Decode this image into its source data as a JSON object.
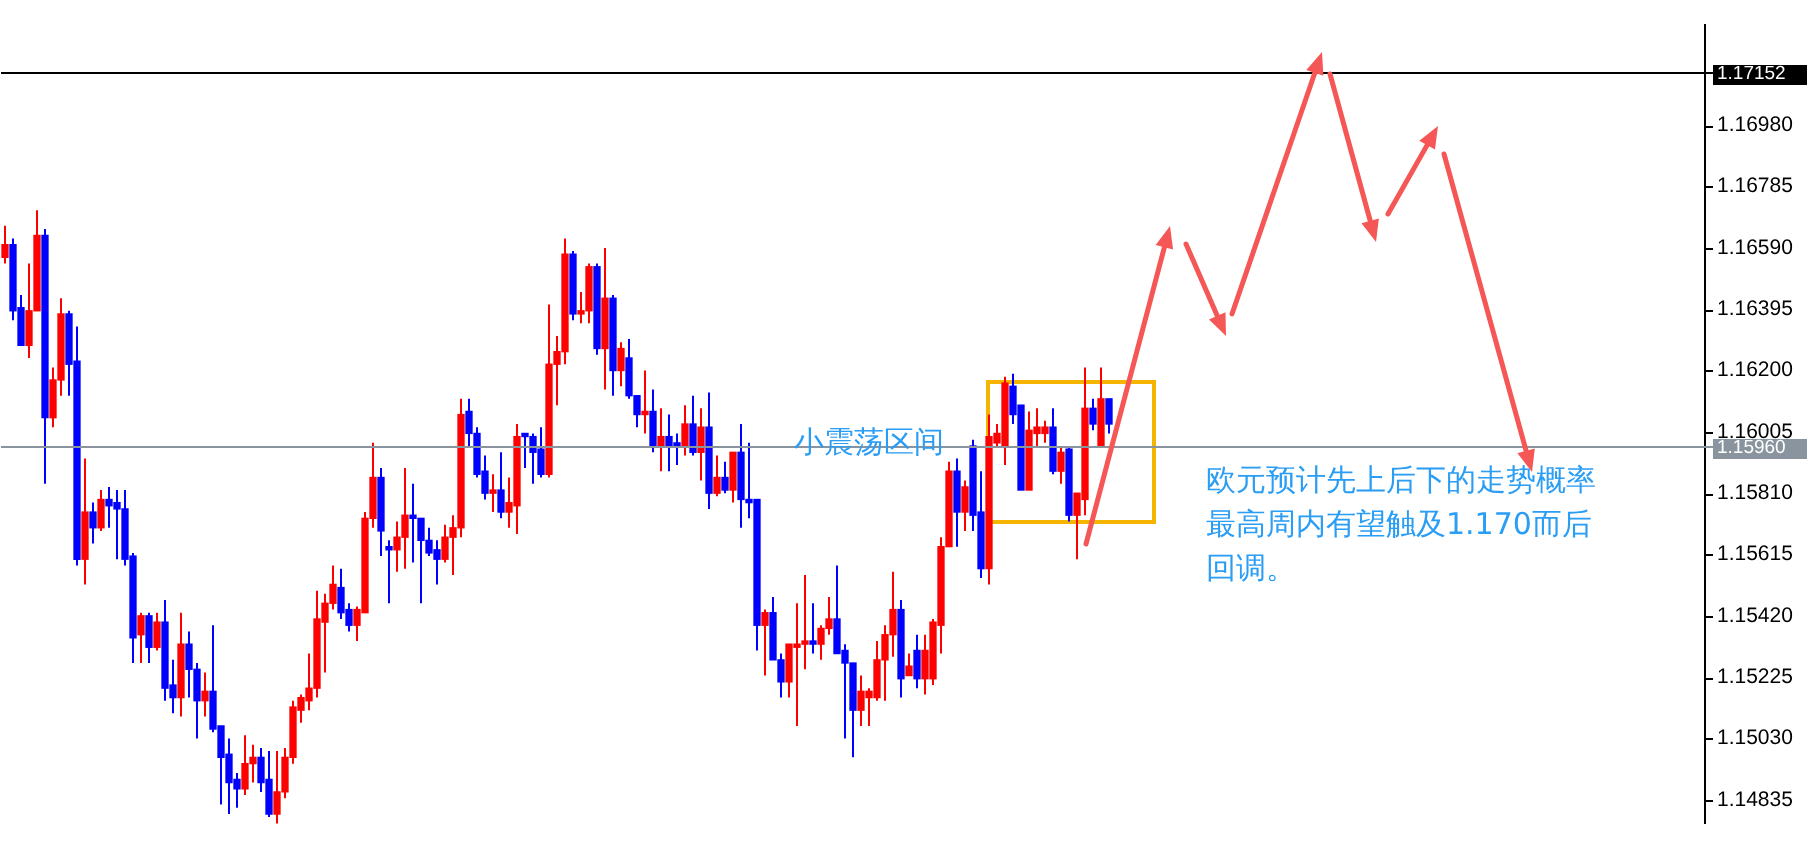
{
  "chart_data": {
    "type": "candlestick",
    "categories": [
      null,
      null,
      null,
      null,
      null,
      null,
      null,
      null,
      null,
      null,
      null,
      null,
      null,
      null,
      null,
      null,
      null,
      null,
      null,
      null,
      null,
      null,
      null,
      null,
      null,
      null,
      null,
      null,
      null,
      null,
      null,
      null,
      null,
      null,
      null,
      null,
      null,
      null,
      null,
      null,
      null,
      null,
      null,
      null,
      null,
      null,
      null,
      null,
      null,
      null,
      null,
      null,
      null,
      null,
      null,
      null,
      null,
      null,
      null,
      null,
      null,
      null,
      null,
      null,
      null,
      null,
      null,
      null,
      null,
      null,
      null,
      null,
      null,
      null,
      null,
      null,
      null,
      null,
      null,
      null,
      null,
      null,
      null,
      null,
      null,
      null,
      null,
      null,
      null,
      null,
      null,
      null,
      null,
      null,
      null,
      null,
      null,
      null,
      null,
      null,
      null,
      null,
      null,
      null,
      null,
      null,
      null,
      null,
      null,
      null,
      null,
      null,
      null,
      null,
      null,
      null,
      null,
      null,
      null,
      null,
      null,
      null,
      null,
      null,
      null,
      null,
      null,
      null,
      null,
      null,
      null,
      null,
      null,
      null,
      null,
      null,
      null,
      null,
      null,
      null,
      null,
      null,
      null,
      null,
      null,
      null,
      null,
      null,
      null,
      null,
      null,
      null,
      null,
      null,
      null,
      null,
      null,
      null,
      null,
      null,
      null,
      null,
      null,
      null,
      null,
      null,
      null,
      null,
      null,
      null,
      null,
      null,
      null,
      null,
      null,
      null,
      null,
      null,
      null,
      null,
      null,
      null,
      null,
      null,
      null,
      null,
      null,
      null,
      null,
      null,
      null,
      null,
      null,
      null,
      null,
      null,
      null,
      null,
      null,
      null,
      null,
      null,
      null,
      null,
      null,
      null,
      null,
      null,
      null,
      null,
      null,
      null,
      null
    ],
    "ohlc": [
      [
        1.1656,
        1.1666,
        1.1654,
        1.166
      ],
      [
        1.166,
        1.1662,
        1.1636,
        1.1639
      ],
      [
        1.164,
        1.1644,
        1.1628,
        1.1628
      ],
      [
        1.1628,
        1.1654,
        1.1624,
        1.1639
      ],
      [
        1.1639,
        1.1671,
        1.1639,
        1.1663
      ],
      [
        1.1663,
        1.1665,
        1.1584,
        1.1605
      ],
      [
        1.1605,
        1.1621,
        1.1602,
        1.1617
      ],
      [
        1.1617,
        1.1643,
        1.1612,
        1.1638
      ],
      [
        1.1638,
        1.1639,
        1.1612,
        1.1622
      ],
      [
        1.1623,
        1.1634,
        1.1558,
        1.156
      ],
      [
        1.156,
        1.1592,
        1.1552,
        1.1575
      ],
      [
        1.1575,
        1.1578,
        1.1565,
        1.157
      ],
      [
        1.157,
        1.1582,
        1.1569,
        1.1579
      ],
      [
        1.1579,
        1.1583,
        1.157,
        1.1577
      ],
      [
        1.1578,
        1.1582,
        1.156,
        1.1576
      ],
      [
        1.1576,
        1.1582,
        1.1558,
        1.156
      ],
      [
        1.1561,
        1.1562,
        1.1527,
        1.1535
      ],
      [
        1.1536,
        1.1543,
        1.1527,
        1.1542
      ],
      [
        1.1542,
        1.1543,
        1.1527,
        1.1532
      ],
      [
        1.1532,
        1.1543,
        1.1531,
        1.154
      ],
      [
        1.154,
        1.1547,
        1.1515,
        1.1519
      ],
      [
        1.152,
        1.1528,
        1.1511,
        1.1516
      ],
      [
        1.1516,
        1.1543,
        1.151,
        1.1533
      ],
      [
        1.1533,
        1.1537,
        1.1516,
        1.1525
      ],
      [
        1.1525,
        1.1527,
        1.1503,
        1.1515
      ],
      [
        1.1515,
        1.1524,
        1.151,
        1.1518
      ],
      [
        1.1518,
        1.1539,
        1.1505,
        1.1506
      ],
      [
        1.1507,
        1.1507,
        1.1482,
        1.1497
      ],
      [
        1.1498,
        1.1503,
        1.1479,
        1.1489
      ],
      [
        1.149,
        1.1492,
        1.1481,
        1.1487
      ],
      [
        1.1487,
        1.1504,
        1.1485,
        1.1495
      ],
      [
        1.1495,
        1.1501,
        1.1489,
        1.1497
      ],
      [
        1.1497,
        1.15,
        1.1486,
        1.1489
      ],
      [
        1.149,
        1.1499,
        1.1478,
        1.1479
      ],
      [
        1.1479,
        1.1499,
        1.1476,
        1.1486
      ],
      [
        1.1486,
        1.15,
        1.1484,
        1.1497
      ],
      [
        1.1497,
        1.1515,
        1.1495,
        1.1513
      ],
      [
        1.1512,
        1.1517,
        1.1508,
        1.1516
      ],
      [
        1.1515,
        1.153,
        1.1512,
        1.1519
      ],
      [
        1.1519,
        1.155,
        1.1516,
        1.1541
      ],
      [
        1.154,
        1.1549,
        1.1524,
        1.1546
      ],
      [
        1.1546,
        1.1558,
        1.1544,
        1.1552
      ],
      [
        1.1551,
        1.1557,
        1.1541,
        1.1543
      ],
      [
        1.1544,
        1.1546,
        1.1537,
        1.1539
      ],
      [
        1.1539,
        1.1545,
        1.1534,
        1.1544
      ],
      [
        1.1543,
        1.1575,
        1.1543,
        1.1573
      ],
      [
        1.1573,
        1.1597,
        1.157,
        1.1586
      ],
      [
        1.1586,
        1.1589,
        1.1561,
        1.1569
      ],
      [
        1.1564,
        1.1566,
        1.1546,
        1.1563
      ],
      [
        1.1563,
        1.1572,
        1.1556,
        1.1567
      ],
      [
        1.1567,
        1.1589,
        1.1557,
        1.1574
      ],
      [
        1.1574,
        1.1584,
        1.1559,
        1.1573
      ],
      [
        1.1573,
        1.1573,
        1.1546,
        1.1566
      ],
      [
        1.1566,
        1.157,
        1.1561,
        1.1562
      ],
      [
        1.1563,
        1.1566,
        1.1552,
        1.156
      ],
      [
        1.156,
        1.1571,
        1.1559,
        1.1567
      ],
      [
        1.1567,
        1.1574,
        1.1555,
        1.157
      ],
      [
        1.157,
        1.1611,
        1.1567,
        1.1606
      ],
      [
        1.1607,
        1.1611,
        1.1596,
        1.16
      ],
      [
        1.16,
        1.1602,
        1.1586,
        1.1587
      ],
      [
        1.1588,
        1.1593,
        1.1579,
        1.1581
      ],
      [
        1.1581,
        1.1587,
        1.1575,
        1.1582
      ],
      [
        1.1582,
        1.1594,
        1.1573,
        1.1575
      ],
      [
        1.1575,
        1.1586,
        1.157,
        1.1578
      ],
      [
        1.1577,
        1.1603,
        1.1568,
        1.1599
      ],
      [
        1.16,
        1.16,
        1.1589,
        1.1599
      ],
      [
        1.1599,
        1.16,
        1.1584,
        1.1594
      ],
      [
        1.1595,
        1.1602,
        1.1586,
        1.1587
      ],
      [
        1.1587,
        1.1641,
        1.1586,
        1.1622
      ],
      [
        1.1622,
        1.1631,
        1.1609,
        1.1626
      ],
      [
        1.1626,
        1.1662,
        1.1622,
        1.1657
      ],
      [
        1.1657,
        1.1658,
        1.1636,
        1.1638
      ],
      [
        1.1638,
        1.1645,
        1.1635,
        1.1639
      ],
      [
        1.1639,
        1.1654,
        1.1635,
        1.1653
      ],
      [
        1.1653,
        1.1654,
        1.1625,
        1.1627
      ],
      [
        1.1627,
        1.1659,
        1.1614,
        1.1643
      ],
      [
        1.1643,
        1.1644,
        1.1612,
        1.162
      ],
      [
        1.162,
        1.1629,
        1.1615,
        1.1627
      ],
      [
        1.1624,
        1.163,
        1.1611,
        1.1612
      ],
      [
        1.1612,
        1.1612,
        1.1602,
        1.1606
      ],
      [
        1.1606,
        1.162,
        1.16,
        1.1607
      ],
      [
        1.1607,
        1.1614,
        1.1594,
        1.1596
      ],
      [
        1.1596,
        1.1608,
        1.1588,
        1.1599
      ],
      [
        1.1599,
        1.1606,
        1.1588,
        1.1596
      ],
      [
        1.1597,
        1.16,
        1.159,
        1.1596
      ],
      [
        1.1596,
        1.1609,
        1.1593,
        1.1603
      ],
      [
        1.1603,
        1.1612,
        1.1593,
        1.1594
      ],
      [
        1.1594,
        1.1608,
        1.1585,
        1.1602
      ],
      [
        1.1602,
        1.1613,
        1.1576,
        1.1581
      ],
      [
        1.1581,
        1.1593,
        1.158,
        1.1586
      ],
      [
        1.1586,
        1.1591,
        1.1581,
        1.1582
      ],
      [
        1.1582,
        1.1594,
        1.1578,
        1.1594
      ],
      [
        1.1594,
        1.1603,
        1.157,
        1.1579
      ],
      [
        1.1579,
        1.1597,
        1.1573,
        1.1578
      ],
      [
        1.1579,
        1.1579,
        1.1531,
        1.1539
      ],
      [
        1.1539,
        1.1544,
        1.1523,
        1.1543
      ],
      [
        1.1543,
        1.1548,
        1.1528,
        1.1528
      ],
      [
        1.1528,
        1.153,
        1.1516,
        1.1521
      ],
      [
        1.1521,
        1.1533,
        1.1516,
        1.1533
      ],
      [
        1.1532,
        1.1546,
        1.1507,
        1.1533
      ],
      [
        1.1533,
        1.1555,
        1.1525,
        1.1534
      ],
      [
        1.1534,
        1.1546,
        1.153,
        1.1533
      ],
      [
        1.1533,
        1.1539,
        1.1528,
        1.1538
      ],
      [
        1.1538,
        1.1548,
        1.1536,
        1.1541
      ],
      [
        1.1541,
        1.1558,
        1.153,
        1.153
      ],
      [
        1.1531,
        1.1533,
        1.1503,
        1.1527
      ],
      [
        1.1527,
        1.1527,
        1.1497,
        1.1512
      ],
      [
        1.1512,
        1.1523,
        1.1507,
        1.1518
      ],
      [
        1.1516,
        1.1519,
        1.1507,
        1.1518
      ],
      [
        1.1516,
        1.1534,
        1.1515,
        1.1528
      ],
      [
        1.1528,
        1.1539,
        1.1515,
        1.1536
      ],
      [
        1.1536,
        1.1556,
        1.1529,
        1.1544
      ],
      [
        1.1544,
        1.1547,
        1.1516,
        1.1522
      ],
      [
        1.1523,
        1.153,
        1.1523,
        1.1526
      ],
      [
        1.1531,
        1.1536,
        1.1519,
        1.1522
      ],
      [
        1.1522,
        1.1536,
        1.1517,
        1.1531
      ],
      [
        1.1522,
        1.1541,
        1.152,
        1.154
      ],
      [
        1.1539,
        1.1567,
        1.153,
        1.1564
      ],
      [
        1.1564,
        1.1591,
        1.1564,
        1.1588
      ],
      [
        1.1588,
        1.1592,
        1.1564,
        1.1575
      ],
      [
        1.1575,
        1.1585,
        1.1569,
        1.1583
      ],
      [
        1.1596,
        1.1598,
        1.1569,
        1.1574
      ],
      [
        1.1575,
        1.1588,
        1.1554,
        1.1557
      ],
      [
        1.1557,
        1.1606,
        1.1552,
        1.1599
      ],
      [
        1.1597,
        1.1603,
        1.1596,
        1.16
      ],
      [
        1.1596,
        1.1618,
        1.159,
        1.1616
      ],
      [
        1.1615,
        1.1619,
        1.1603,
        1.1606
      ],
      [
        1.1609,
        1.1609,
        1.1582,
        1.1582
      ],
      [
        1.1582,
        1.1607,
        1.1582,
        1.1601
      ],
      [
        1.16,
        1.1608,
        1.1596,
        1.1602
      ],
      [
        1.16,
        1.1604,
        1.1597,
        1.1602
      ],
      [
        1.1602,
        1.1608,
        1.1587,
        1.1588
      ],
      [
        1.1588,
        1.1596,
        1.1584,
        1.1594
      ],
      [
        1.1595,
        1.1596,
        1.1572,
        1.1574
      ],
      [
        1.1574,
        1.1581,
        1.156,
        1.1581
      ],
      [
        1.1579,
        1.1621,
        1.1574,
        1.1608
      ],
      [
        1.1608,
        1.1611,
        1.1601,
        1.1603
      ],
      [
        1.1596,
        1.1621,
        1.1596,
        1.1611
      ],
      [
        1.1611,
        1.1611,
        1.16,
        1.1603
      ],
      null,
      null,
      null,
      null,
      null,
      null,
      null,
      null,
      null,
      null,
      null,
      null,
      null,
      null,
      null,
      null,
      null,
      null,
      null,
      null,
      null,
      null,
      null,
      null,
      null,
      null,
      null,
      null,
      null,
      null,
      null,
      null,
      null,
      null,
      null,
      null,
      null,
      null,
      null,
      null,
      null,
      null,
      null,
      null,
      null,
      null,
      null,
      null,
      null,
      null,
      null,
      null,
      null,
      null,
      null,
      null,
      null,
      null,
      null,
      null,
      null,
      null,
      null,
      null,
      null,
      null,
      null,
      null,
      null,
      null,
      null,
      null,
      null,
      null
    ],
    "colors": [
      "#ff0000",
      "#0000ff",
      "#0000ff",
      "#ff0000",
      "#ff0000",
      "#0000ff",
      "#ff0000",
      "#ff0000",
      "#0000ff",
      "#0000ff",
      "#ff0000",
      "#0000ff",
      "#ff0000",
      "#0000ff",
      "#0000ff",
      "#0000ff",
      "#0000ff",
      "#ff0000",
      "#0000ff",
      "#ff0000",
      "#0000ff",
      "#0000ff",
      "#ff0000",
      "#0000ff",
      "#0000ff",
      "#ff0000",
      "#0000ff",
      "#0000ff",
      "#0000ff",
      "#0000ff",
      "#ff0000",
      "#ff0000",
      "#0000ff",
      "#0000ff",
      "#ff0000",
      "#ff0000",
      "#ff0000",
      "#ff0000",
      "#ff0000",
      "#ff0000",
      "#ff0000",
      "#ff0000",
      "#0000ff",
      "#0000ff",
      "#ff0000",
      "#ff0000",
      "#ff0000",
      "#0000ff",
      "#0000ff",
      "#ff0000",
      "#ff0000",
      "#0000ff",
      "#0000ff",
      "#0000ff",
      "#0000ff",
      "#ff0000",
      "#ff0000",
      "#ff0000",
      "#0000ff",
      "#0000ff",
      "#0000ff",
      "#ff0000",
      "#0000ff",
      "#ff0000",
      "#ff0000",
      "#0000ff",
      "#0000ff",
      "#0000ff",
      "#ff0000",
      "#ff0000",
      "#ff0000",
      "#0000ff",
      "#ff0000",
      "#ff0000",
      "#0000ff",
      "#ff0000",
      "#0000ff",
      "#ff0000",
      "#0000ff",
      "#0000ff",
      "#ff0000",
      "#0000ff",
      "#ff0000",
      "#0000ff",
      "#0000ff",
      "#ff0000",
      "#0000ff",
      "#ff0000",
      "#0000ff",
      "#ff0000",
      "#0000ff",
      "#ff0000",
      "#0000ff",
      "#0000ff",
      "#0000ff",
      "#ff0000",
      "#0000ff",
      "#0000ff",
      "#ff0000",
      "#ff0000",
      "#ff0000",
      "#0000ff",
      "#ff0000",
      "#ff0000",
      "#0000ff",
      "#0000ff",
      "#0000ff",
      "#ff0000",
      "#ff0000",
      "#ff0000",
      "#ff0000",
      "#ff0000",
      "#0000ff",
      "#ff0000",
      "#0000ff",
      "#ff0000",
      "#ff0000",
      "#ff0000",
      "#ff0000",
      "#0000ff",
      "#ff0000",
      "#0000ff",
      "#0000ff",
      "#ff0000",
      "#ff0000",
      "#ff0000",
      "#0000ff",
      "#0000ff",
      "#ff0000",
      "#ff0000",
      "#ff0000",
      "#0000ff",
      "#ff0000",
      "#0000ff",
      "#ff0000",
      "#ff0000",
      "#0000ff",
      "#ff0000",
      "#0000ff",
      null,
      null,
      null,
      null,
      null,
      null,
      null,
      null,
      null,
      null,
      null,
      null,
      null,
      null,
      null,
      null,
      null,
      null,
      null,
      null,
      null,
      null,
      null,
      null,
      null,
      null,
      null,
      null,
      null,
      null,
      null,
      null,
      null,
      null,
      null,
      null,
      null,
      null,
      null,
      null,
      null,
      null,
      null,
      null,
      null,
      null,
      null,
      null,
      null,
      null,
      null,
      null,
      null,
      null,
      null,
      null,
      null,
      null,
      null,
      null,
      null,
      null,
      null,
      null,
      null,
      null,
      null,
      null,
      null,
      null,
      null,
      null,
      null,
      null
    ],
    "ylim": [
      1.1476,
      1.173
    ],
    "yticks": [
      {
        "value": 1.1698,
        "label": "1.16980"
      },
      {
        "value": 1.16785,
        "label": "1.16785"
      },
      {
        "value": 1.1659,
        "label": "1.16590"
      },
      {
        "value": 1.16395,
        "label": "1.16395"
      },
      {
        "value": 1.162,
        "label": "1.16200"
      },
      {
        "value": 1.16005,
        "label": "1.16005"
      },
      {
        "value": 1.1581,
        "label": "1.15810"
      },
      {
        "value": 1.15615,
        "label": "1.15615"
      },
      {
        "value": 1.1542,
        "label": "1.15420"
      },
      {
        "value": 1.15225,
        "label": "1.15225"
      },
      {
        "value": 1.1503,
        "label": "1.15030"
      },
      {
        "value": 1.14835,
        "label": "1.14835"
      }
    ],
    "tick_labels": "y",
    "ref_lines": [
      {
        "axis": "y",
        "value": 1.1596,
        "label": "1.15960",
        "color": "#8a949e"
      },
      {
        "axis": "y",
        "value": 1.17152,
        "label": "1.17152",
        "color": "#000000"
      }
    ],
    "annotations": [
      "小震荡区间",
      "欧元预计先上后下的走势概率最高周内有望触及1.170而后回调。"
    ]
  }
}
